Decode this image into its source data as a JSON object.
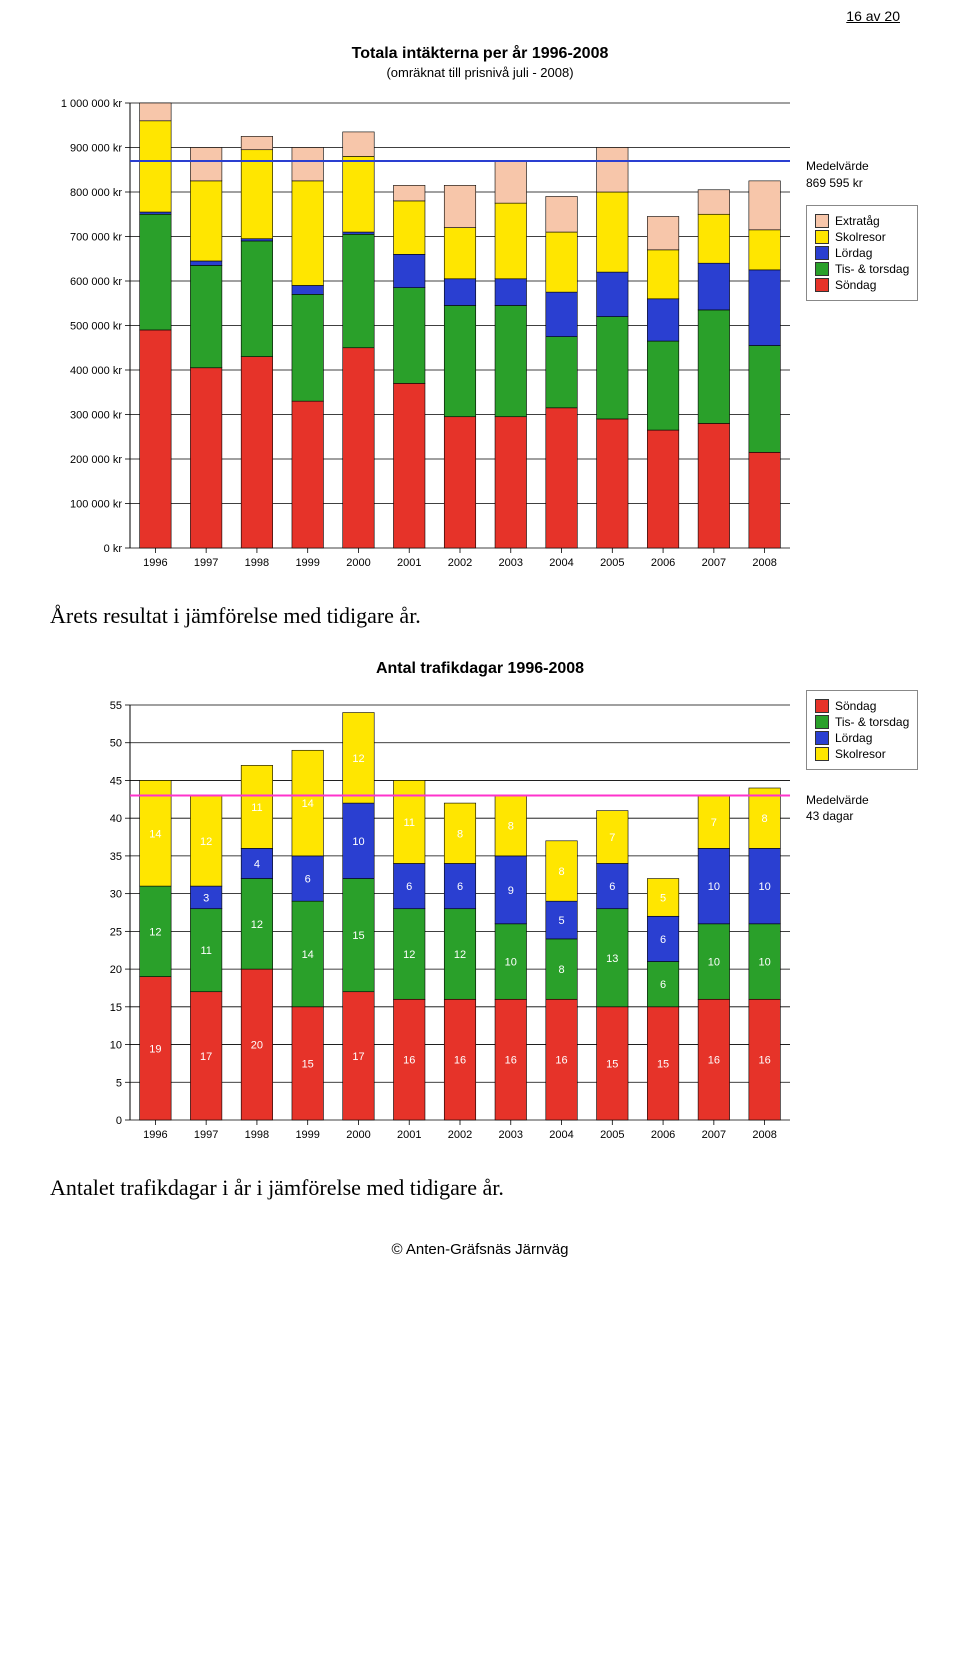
{
  "page_number_text": "16 av 20",
  "chart1": {
    "type": "stacked-bar",
    "title": "Totala intäkterna per år 1996-2008",
    "subtitle": "(omräknat till prisnivå juli - 2008)",
    "categories": [
      "1996",
      "1997",
      "1998",
      "1999",
      "2000",
      "2001",
      "2002",
      "2003",
      "2004",
      "2005",
      "2006",
      "2007",
      "2008"
    ],
    "series": [
      {
        "name": "Söndag",
        "color": "#e63329",
        "values": [
          490000,
          405000,
          430000,
          330000,
          450000,
          370000,
          295000,
          295000,
          315000,
          290000,
          265000,
          280000,
          215000
        ]
      },
      {
        "name": "Tis- & torsdag",
        "color": "#2aa02a",
        "values": [
          260000,
          230000,
          260000,
          240000,
          255000,
          215000,
          250000,
          250000,
          160000,
          230000,
          200000,
          255000,
          240000
        ]
      },
      {
        "name": "Lördag",
        "color": "#2a3fd1",
        "values": [
          5000,
          10000,
          5000,
          20000,
          5000,
          75000,
          60000,
          60000,
          100000,
          100000,
          95000,
          105000,
          170000
        ]
      },
      {
        "name": "Skolresor",
        "color": "#ffe600",
        "values": [
          205000,
          180000,
          200000,
          235000,
          170000,
          120000,
          115000,
          170000,
          135000,
          180000,
          110000,
          110000,
          90000
        ]
      },
      {
        "name": "Extratåg",
        "color": "#f7c6aa",
        "values": [
          40000,
          75000,
          30000,
          75000,
          55000,
          35000,
          95000,
          95000,
          80000,
          100000,
          75000,
          55000,
          110000
        ]
      }
    ],
    "mean_value": 869595,
    "mean_color": "#2a3fd1",
    "mean_label": "Medelvärde",
    "mean_value_label": "869 595 kr",
    "y_axis": {
      "min": 0,
      "max": 1000000,
      "step": 100000,
      "suffix": " kr"
    },
    "background_color": "#ffffff",
    "grid_color": "#000000",
    "tick_fontsize": 11,
    "bar_width": 0.62,
    "legend_order": [
      "Extratåg",
      "Skolresor",
      "Lördag",
      "Tis- & torsdag",
      "Söndag"
    ]
  },
  "caption1": "Årets resultat i jämförelse med tidigare år.",
  "chart2": {
    "type": "stacked-bar",
    "title": "Antal trafikdagar 1996-2008",
    "categories": [
      "1996",
      "1997",
      "1998",
      "1999",
      "2000",
      "2001",
      "2002",
      "2003",
      "2004",
      "2005",
      "2006",
      "2007",
      "2008"
    ],
    "series": [
      {
        "name": "Söndag",
        "color": "#e63329",
        "values": [
          19,
          17,
          20,
          15,
          17,
          16,
          16,
          16,
          16,
          15,
          15,
          16,
          16
        ]
      },
      {
        "name": "Tis- & torsdag",
        "color": "#2aa02a",
        "values": [
          12,
          11,
          12,
          14,
          15,
          12,
          12,
          10,
          8,
          13,
          6,
          10,
          10
        ]
      },
      {
        "name": "Lördag",
        "color": "#2a3fd1",
        "values": [
          0,
          3,
          4,
          6,
          10,
          6,
          6,
          9,
          5,
          6,
          6,
          10,
          10
        ]
      },
      {
        "name": "Skolresor",
        "color": "#ffe600",
        "values": [
          14,
          12,
          11,
          14,
          12,
          11,
          8,
          8,
          8,
          7,
          5,
          7,
          8
        ]
      }
    ],
    "mean_value": 43,
    "mean_color": "#ff33cc",
    "mean_label": "Medelvärde",
    "mean_value_label": "43 dagar",
    "y_axis": {
      "min": 0,
      "max": 55,
      "step": 5,
      "suffix": ""
    },
    "background_color": "#ffffff",
    "grid_color": "#000000",
    "tick_fontsize": 11,
    "bar_width": 0.62,
    "bar_label_color": "#ffffff",
    "bar_label_fontsize": 11,
    "legend_order": [
      "Söndag",
      "Tis- & torsdag",
      "Lördag",
      "Skolresor"
    ]
  },
  "caption2": "Antalet trafikdagar i år i jämförelse med tidigare år.",
  "footer_text": "© Anten-Gräfsnäs Järnväg"
}
